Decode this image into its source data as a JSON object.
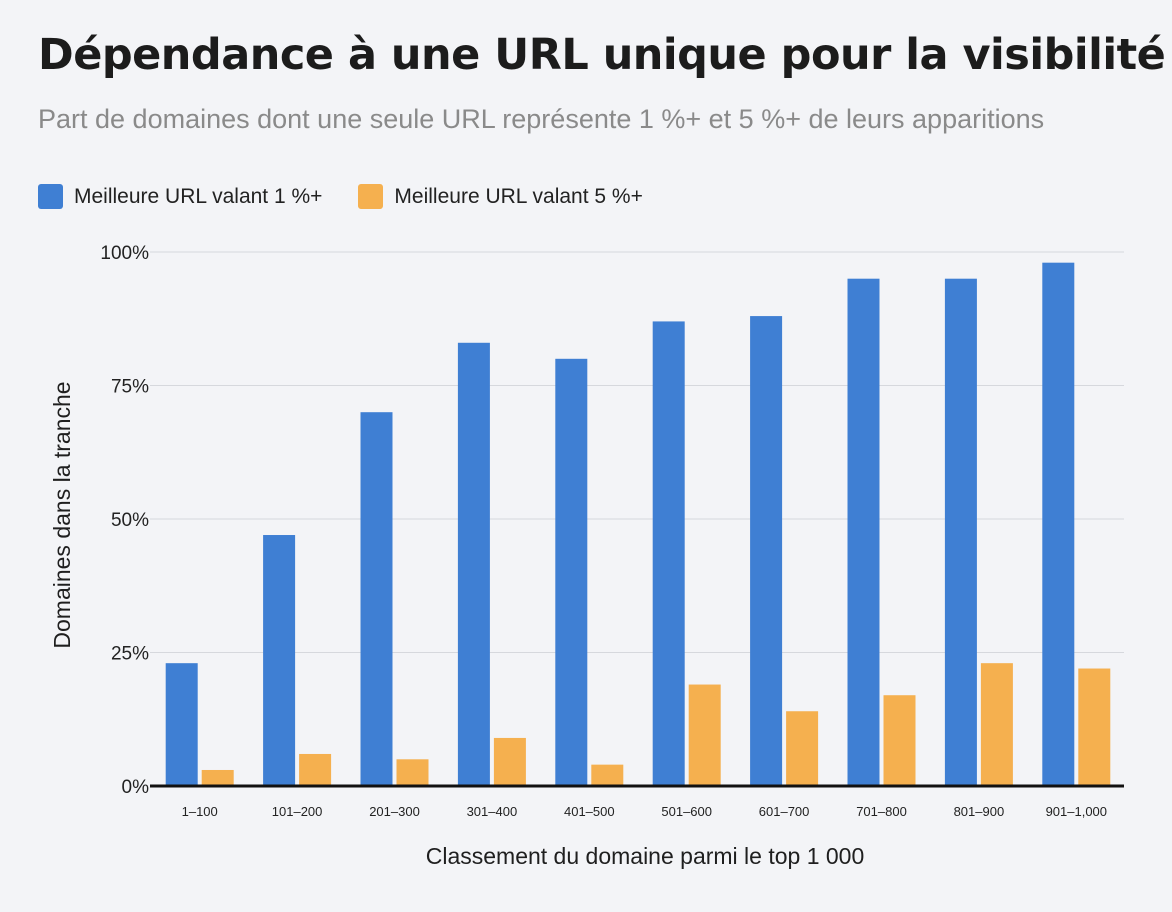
{
  "chart_data": {
    "type": "bar",
    "title": "Dépendance à une URL unique pour la visibilité",
    "subtitle": "Part de domaines dont une seule URL représente 1 %+ et 5 %+ de leurs apparitions",
    "xlabel": "Classement du domaine parmi le top 1 000",
    "ylabel": "Domaines dans la tranche",
    "categories": [
      "1–100",
      "101–200",
      "201–300",
      "301–400",
      "401–500",
      "501–600",
      "601–700",
      "701–800",
      "801–900",
      "901–1,000"
    ],
    "series": [
      {
        "name": "Meilleure URL valant 1 %+",
        "color": "#3f7fd3",
        "values": [
          23,
          47,
          70,
          83,
          80,
          87,
          88,
          95,
          95,
          98
        ]
      },
      {
        "name": "Meilleure URL valant 5 %+",
        "color": "#f5b04f",
        "values": [
          3,
          6,
          5,
          9,
          4,
          19,
          14,
          17,
          23,
          22
        ]
      }
    ],
    "ylim": [
      0,
      100
    ],
    "yticks": [
      0,
      25,
      50,
      75,
      100
    ],
    "ytick_labels": [
      "0%",
      "25%",
      "50%",
      "75%",
      "100%"
    ],
    "grid": true,
    "legend_position": "top-left"
  }
}
